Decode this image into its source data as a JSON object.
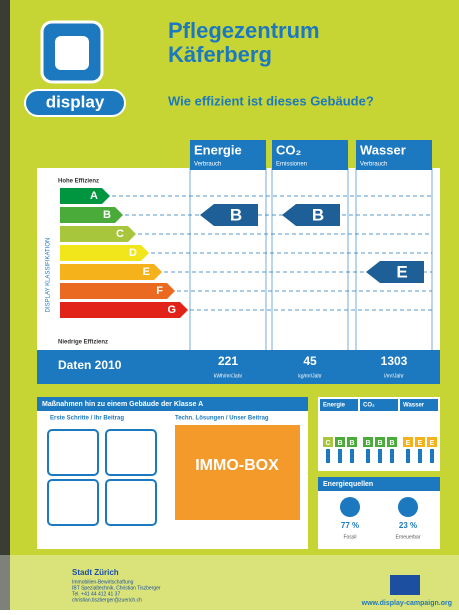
{
  "logo": {
    "text": "display"
  },
  "header": {
    "title_lines": [
      "Pflegezentrum",
      "Käferberg"
    ],
    "subtitle": "Wie effizient ist dieses Gebäude?"
  },
  "scale": {
    "top_label": "Hohe Effizienz",
    "bottom_label": "Niedrige Effizienz",
    "axis_label": "DISPLAY KLASSIFIKATION",
    "grades": [
      "A",
      "B",
      "C",
      "D",
      "E",
      "F",
      "G"
    ]
  },
  "columns": [
    {
      "title": "Energie",
      "subtitle": "Verbrauch",
      "rating": "B",
      "value": "221",
      "unit": "kWh/m²/Jahr"
    },
    {
      "title": "CO₂",
      "subtitle": "Emissionen",
      "rating": "B",
      "value": "45",
      "unit": "kg/m²/Jahr"
    },
    {
      "title": "Wasser",
      "subtitle": "Verbrauch",
      "rating": "E",
      "value": "1303",
      "unit": "l/m²/Jahr"
    }
  ],
  "data_year": "Daten 2010",
  "measures": {
    "title": "Maßnahmen hin zu einem Gebäude der Klasse A",
    "left": "Erste Schritte / Ihr Beitrag",
    "right": "Techn. Lösungen / Unser Beitrag",
    "box": "IMMO-BOX"
  },
  "history": {
    "headers": [
      "Energie",
      "CO₂",
      "Wasser"
    ],
    "letters": [
      [
        "C",
        "B",
        "B"
      ],
      [
        "B",
        "B",
        "B"
      ],
      [
        "E",
        "E",
        "E"
      ]
    ]
  },
  "sources": {
    "title": "Energiequellen",
    "items": [
      {
        "value": "77 %",
        "label": "Fossil"
      },
      {
        "value": "23 %",
        "label": "Erneuerbar"
      }
    ]
  },
  "footer": {
    "org": "Stadt Zürich",
    "lines": [
      "Immobilien-Bewirtschaftung",
      "IBT Spezialtechnik, Christian Tiszberger",
      "Tel. +41 44 412 41 37",
      "christian.tiszberger@zuerich.ch"
    ],
    "url": "www.display-campaign.org"
  }
}
